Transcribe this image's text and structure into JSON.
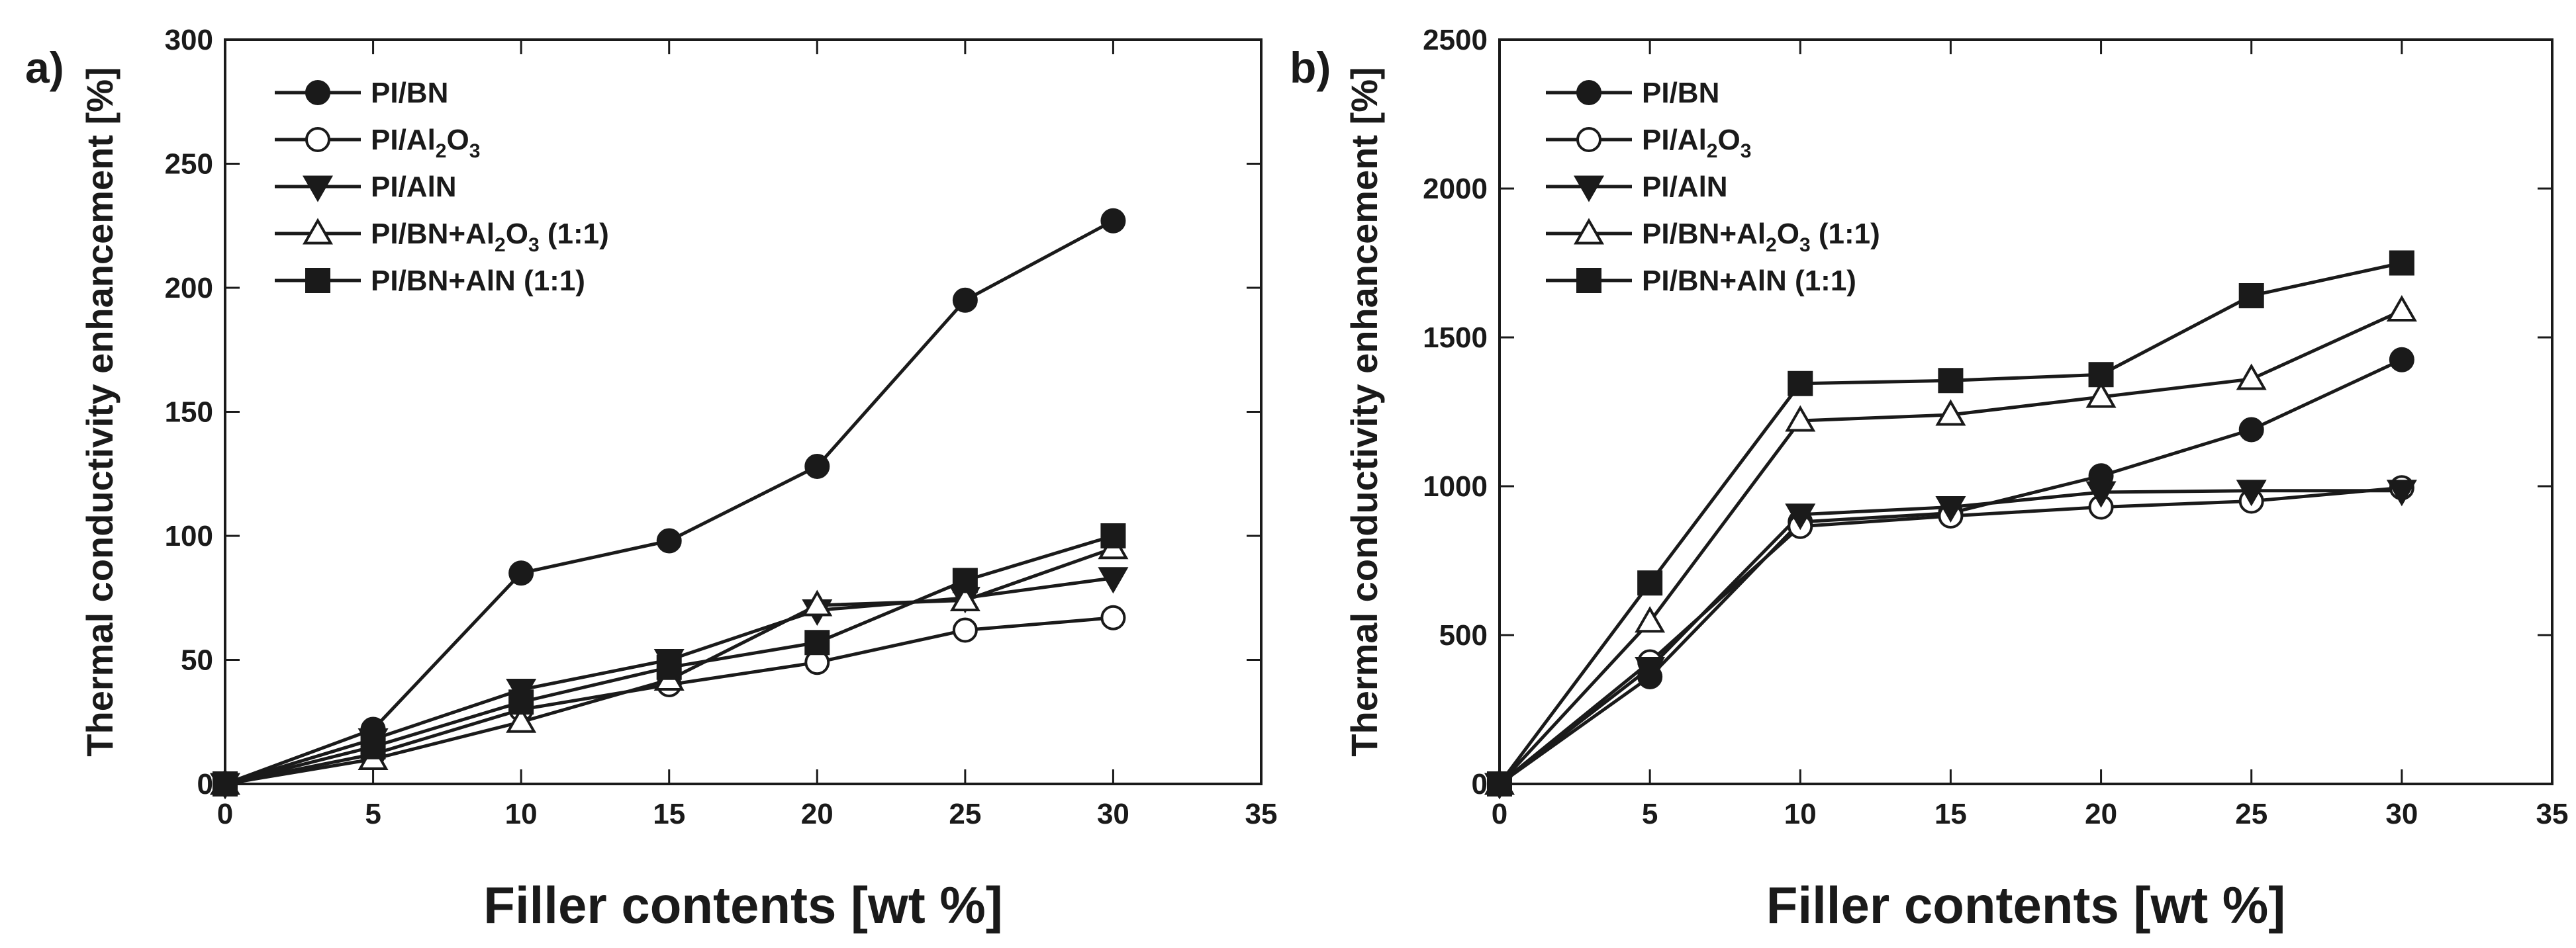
{
  "chart_data": [
    {
      "panel_label": "a)",
      "type": "line",
      "title": "",
      "xlabel": "Filler contents [wt %]",
      "ylabel": "Thermal conductivity enhancement [%]",
      "xlim": [
        0,
        35
      ],
      "ylim": [
        0,
        300
      ],
      "xticks": [
        0,
        5,
        10,
        15,
        20,
        25,
        30,
        35
      ],
      "yticks": [
        0,
        50,
        100,
        150,
        200,
        250,
        300
      ],
      "grid": false,
      "legend_position": "top-left",
      "x": [
        0,
        5,
        10,
        15,
        20,
        25,
        30
      ],
      "series": [
        {
          "name": "PI/BN",
          "name_parts": [
            "PI/BN"
          ],
          "marker": "filled-circle",
          "values": [
            0,
            22,
            85,
            98,
            128,
            195,
            227
          ]
        },
        {
          "name": "PI/Al2O3",
          "name_parts": [
            "PI/Al",
            "2",
            "O",
            "3",
            ""
          ],
          "marker": "open-circle",
          "values": [
            0,
            12,
            30,
            40,
            49,
            62,
            67
          ]
        },
        {
          "name": "PI/AlN",
          "name_parts": [
            "PI/AlN"
          ],
          "marker": "filled-triangle-down",
          "values": [
            0,
            18,
            38,
            50,
            70,
            75,
            83
          ]
        },
        {
          "name": "PI/BN+Al2O3 (1:1)",
          "name_parts": [
            "PI/BN+Al",
            "2",
            "O",
            "3",
            " (1:1)"
          ],
          "marker": "open-triangle-up",
          "values": [
            0,
            10,
            25,
            42,
            72,
            74,
            95
          ]
        },
        {
          "name": "PI/BN+AlN (1:1)",
          "name_parts": [
            "PI/BN+AlN (1:1)"
          ],
          "marker": "filled-square",
          "values": [
            0,
            15,
            33,
            47,
            57,
            82,
            100
          ]
        }
      ]
    },
    {
      "panel_label": "b)",
      "type": "line",
      "title": "",
      "xlabel": "Filler contents [wt %]",
      "ylabel": "Thermal conductivity enhancement [%]",
      "xlim": [
        0,
        35
      ],
      "ylim": [
        0,
        2500
      ],
      "xticks": [
        0,
        5,
        10,
        15,
        20,
        25,
        30,
        35
      ],
      "yticks": [
        0,
        500,
        1000,
        1500,
        2000,
        2500
      ],
      "grid": false,
      "legend_position": "top-left",
      "x": [
        0,
        5,
        10,
        15,
        20,
        25,
        30
      ],
      "series": [
        {
          "name": "PI/BN",
          "name_parts": [
            "PI/BN"
          ],
          "marker": "filled-circle",
          "values": [
            0,
            360,
            880,
            910,
            1035,
            1190,
            1425
          ]
        },
        {
          "name": "PI/Al2O3",
          "name_parts": [
            "PI/Al",
            "2",
            "O",
            "3",
            ""
          ],
          "marker": "open-circle",
          "values": [
            0,
            410,
            865,
            900,
            930,
            950,
            995
          ]
        },
        {
          "name": "PI/AlN",
          "name_parts": [
            "PI/AlN"
          ],
          "marker": "filled-triangle-down",
          "values": [
            0,
            390,
            905,
            930,
            980,
            985,
            985
          ]
        },
        {
          "name": "PI/BN+Al2O3 (1:1)",
          "name_parts": [
            "PI/BN+Al",
            "2",
            "O",
            "3",
            " (1:1)"
          ],
          "marker": "open-triangle-up",
          "values": [
            0,
            545,
            1220,
            1240,
            1300,
            1360,
            1590
          ]
        },
        {
          "name": "PI/BN+AlN (1:1)",
          "name_parts": [
            "PI/BN+AlN (1:1)"
          ],
          "marker": "filled-square",
          "values": [
            0,
            675,
            1345,
            1355,
            1375,
            1640,
            1750
          ]
        }
      ]
    }
  ],
  "colors": {
    "ink": "#1a1a1a",
    "background": "#ffffff"
  }
}
